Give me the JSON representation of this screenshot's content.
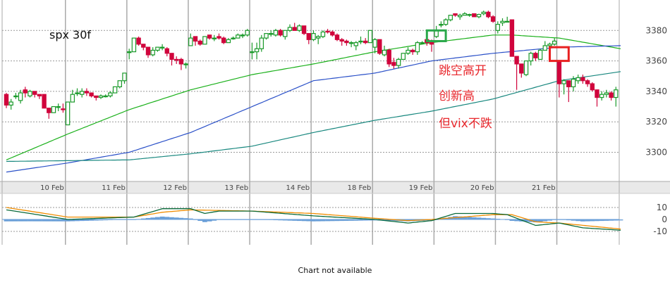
{
  "chart_data": {
    "type": "candlestick",
    "title": "spx  30f",
    "colors": {
      "up": "#1a9a2a",
      "down": "#d0043c",
      "ma_short": "#19b019",
      "ma_mid": "#2a50c8",
      "ma_long": "#17877e",
      "macd_dif": "#0a6a3a",
      "macd_dea": "#f08c00",
      "macd_hist": "#6a9fd8",
      "grid": "#aaaaaa"
    },
    "y_ticks": [
      3380,
      3360,
      3340,
      3320,
      3300
    ],
    "ylim": [
      3282,
      3400
    ],
    "x_ticks": [
      {
        "bar": 12,
        "label": "10 Feb"
      },
      {
        "bar": 25,
        "label": "11 Feb"
      },
      {
        "bar": 38,
        "label": "12 Feb"
      },
      {
        "bar": 51,
        "label": "13 Feb"
      },
      {
        "bar": 64,
        "label": "14 Feb"
      },
      {
        "bar": 77,
        "label": "18 Feb"
      },
      {
        "bar": 90,
        "label": "19 Feb"
      },
      {
        "bar": 103,
        "label": "20 Feb"
      },
      {
        "bar": 116,
        "label": "21 Feb"
      }
    ],
    "ohlc": [
      [
        3338,
        3339,
        3329,
        3331
      ],
      [
        3331,
        3335,
        3328,
        3333
      ],
      [
        3337,
        3339,
        3335,
        3337
      ],
      [
        3334,
        3341,
        3332,
        3339
      ],
      [
        3341,
        3343,
        3336,
        3339
      ],
      [
        3337,
        3341,
        3336,
        3340
      ],
      [
        3340,
        3340,
        3336,
        3338
      ],
      [
        3338,
        3338,
        3335,
        3337
      ],
      [
        3338,
        3338,
        3329,
        3329
      ],
      [
        3329,
        3329,
        3322,
        3326
      ],
      [
        3326,
        3330,
        3326,
        3330
      ],
      [
        3330,
        3332,
        3327,
        3330
      ],
      [
        3328.5,
        3332,
        3326,
        3328
      ],
      [
        3318,
        3333,
        3318,
        3333
      ],
      [
        3333,
        3341,
        3333,
        3338
      ],
      [
        3339,
        3342,
        3337,
        3339
      ],
      [
        3338,
        3342,
        3336,
        3340
      ],
      [
        3340,
        3342,
        3337,
        3339
      ],
      [
        3339,
        3339,
        3336,
        3337
      ],
      [
        3337,
        3337,
        3334,
        3336
      ],
      [
        3336,
        3338,
        3335,
        3337
      ],
      [
        3337,
        3338,
        3336,
        3337
      ],
      [
        3337,
        3340,
        3336,
        3339
      ],
      [
        3339,
        3343,
        3339,
        3343
      ],
      [
        3343,
        3347,
        3342,
        3347
      ],
      [
        3347,
        3352,
        3345,
        3352
      ],
      [
        3366,
        3368,
        3361,
        3366
      ],
      [
        3366,
        3375,
        3366,
        3375
      ],
      [
        3375,
        3376,
        3370,
        3371
      ],
      [
        3371,
        3371,
        3367,
        3369
      ],
      [
        3369,
        3369,
        3362,
        3364
      ],
      [
        3364,
        3369,
        3363,
        3367
      ],
      [
        3367,
        3369,
        3366,
        3369
      ],
      [
        3369,
        3371,
        3367,
        3369
      ],
      [
        3368,
        3369,
        3363,
        3365
      ],
      [
        3365,
        3365,
        3357,
        3361
      ],
      [
        3361,
        3363,
        3358,
        3360.5
      ],
      [
        3361,
        3362,
        3354,
        3358
      ],
      [
        3358,
        3359,
        3355,
        3358
      ],
      [
        3370,
        3378,
        3370,
        3375
      ],
      [
        3376,
        3376,
        3370,
        3373
      ],
      [
        3373,
        3374,
        3370,
        3371
      ],
      [
        3371,
        3376,
        3371,
        3376
      ],
      [
        3377,
        3377,
        3374,
        3375
      ],
      [
        3375,
        3377,
        3373,
        3375
      ],
      [
        3376,
        3378,
        3374,
        3375
      ],
      [
        3375,
        3376,
        3371,
        3372
      ],
      [
        3372,
        3375,
        3372,
        3374
      ],
      [
        3375,
        3376,
        3374,
        3375
      ],
      [
        3375,
        3378,
        3375,
        3377
      ],
      [
        3377,
        3378,
        3375,
        3377
      ],
      [
        3377,
        3381,
        3376,
        3380
      ],
      [
        3366,
        3372,
        3361,
        3366
      ],
      [
        3366,
        3372,
        3361,
        3368
      ],
      [
        3368,
        3377,
        3366,
        3375
      ],
      [
        3375,
        3378,
        3374,
        3378
      ],
      [
        3378,
        3380,
        3376,
        3378
      ],
      [
        3377,
        3381,
        3376,
        3380
      ],
      [
        3380,
        3381,
        3376,
        3377
      ],
      [
        3376,
        3380,
        3374,
        3380
      ],
      [
        3380,
        3384,
        3379,
        3382
      ],
      [
        3382,
        3385,
        3380,
        3380
      ],
      [
        3380,
        3384,
        3379,
        3383
      ],
      [
        3383,
        3383,
        3377,
        3378
      ],
      [
        3378,
        3378,
        3371,
        3374
      ],
      [
        3374,
        3380,
        3373,
        3378
      ],
      [
        3375,
        3377,
        3371,
        3376
      ],
      [
        3376,
        3380,
        3375,
        3379
      ],
      [
        3379.5,
        3381,
        3378,
        3379
      ],
      [
        3379,
        3380,
        3376,
        3377
      ],
      [
        3377,
        3378,
        3373,
        3374
      ],
      [
        3374,
        3375,
        3370,
        3373
      ],
      [
        3373,
        3374,
        3370,
        3372
      ],
      [
        3372,
        3373,
        3369,
        3372
      ],
      [
        3370,
        3373,
        3367,
        3372
      ],
      [
        3373,
        3376,
        3371,
        3373
      ],
      [
        3373,
        3375,
        3371,
        3372
      ],
      [
        3372,
        3380,
        3372,
        3380
      ],
      [
        3369,
        3375,
        3365,
        3374
      ],
      [
        3374,
        3374,
        3364,
        3365
      ],
      [
        3364,
        3370,
        3363,
        3367
      ],
      [
        3367,
        3368,
        3356,
        3358
      ],
      [
        3359,
        3362,
        3355,
        3357
      ],
      [
        3357,
        3362,
        3355,
        3361
      ],
      [
        3361,
        3365,
        3361,
        3365
      ],
      [
        3365,
        3369,
        3364,
        3367
      ],
      [
        3367,
        3368,
        3364,
        3366
      ],
      [
        3366,
        3373,
        3364,
        3372
      ],
      [
        3372,
        3373,
        3371,
        3372
      ],
      [
        3374,
        3376,
        3370,
        3372
      ],
      [
        3372,
        3374,
        3366,
        3371
      ],
      [
        3376,
        3383,
        3375,
        3380
      ],
      [
        3384,
        3386,
        3382,
        3384
      ],
      [
        3384,
        3388,
        3383,
        3387
      ],
      [
        3387,
        3390,
        3386,
        3390
      ],
      [
        3391,
        3391,
        3389,
        3390
      ],
      [
        3389,
        3391,
        3387,
        3390
      ],
      [
        3390,
        3392,
        3390,
        3391
      ],
      [
        3390.5,
        3391,
        3389,
        3390.5
      ],
      [
        3391,
        3391,
        3389,
        3389
      ],
      [
        3389,
        3391,
        3388,
        3390.5
      ],
      [
        3391,
        3393,
        3390,
        3392
      ],
      [
        3392,
        3393,
        3388,
        3389
      ],
      [
        3389,
        3390,
        3385,
        3386
      ],
      [
        3380,
        3386,
        3378,
        3384
      ],
      [
        3385,
        3388,
        3383,
        3386
      ],
      [
        3386,
        3389,
        3386,
        3386
      ],
      [
        3387,
        3387,
        3363,
        3363
      ],
      [
        3363,
        3363,
        3341,
        3358
      ],
      [
        3358,
        3358,
        3349,
        3352
      ],
      [
        3351,
        3360,
        3350,
        3360
      ],
      [
        3360,
        3366,
        3357,
        3365
      ],
      [
        3365,
        3366,
        3360,
        3362
      ],
      [
        3361,
        3368,
        3361,
        3367
      ],
      [
        3367,
        3373,
        3367,
        3370
      ],
      [
        3370,
        3372,
        3365,
        3371
      ],
      [
        3371,
        3375,
        3370,
        3373
      ],
      [
        3360,
        3360,
        3336,
        3345
      ],
      [
        3345,
        3348,
        3338,
        3347
      ],
      [
        3347,
        3347,
        3333,
        3343
      ],
      [
        3343,
        3350,
        3340,
        3348
      ],
      [
        3347,
        3351,
        3345,
        3349
      ],
      [
        3349,
        3351,
        3345,
        3347
      ],
      [
        3347,
        3348,
        3343,
        3345
      ],
      [
        3345,
        3346,
        3340,
        3341
      ],
      [
        3341,
        3341,
        3330,
        3336
      ],
      [
        3336,
        3340,
        3334,
        3338
      ],
      [
        3338,
        3341,
        3336,
        3339
      ],
      [
        3339,
        3340,
        3334,
        3336
      ],
      [
        3336,
        3343,
        3330,
        3341
      ]
    ],
    "moving_averages": [
      {
        "key": "ma_short",
        "points": [
          [
            0,
            3295
          ],
          [
            13,
            3312
          ],
          [
            26,
            3328
          ],
          [
            39,
            3341
          ],
          [
            52,
            3351
          ],
          [
            65,
            3358
          ],
          [
            78,
            3366
          ],
          [
            90,
            3372
          ],
          [
            103,
            3377
          ],
          [
            107,
            3377
          ],
          [
            117,
            3375
          ],
          [
            130,
            3368
          ]
        ]
      },
      {
        "key": "ma_mid",
        "points": [
          [
            0,
            3287
          ],
          [
            13,
            3293
          ],
          [
            26,
            3300
          ],
          [
            39,
            3313
          ],
          [
            52,
            3330
          ],
          [
            65,
            3347
          ],
          [
            78,
            3352
          ],
          [
            90,
            3360
          ],
          [
            103,
            3365
          ],
          [
            117,
            3369
          ],
          [
            130,
            3370
          ]
        ]
      },
      {
        "key": "ma_long",
        "points": [
          [
            0,
            3294
          ],
          [
            26,
            3295
          ],
          [
            39,
            3299
          ],
          [
            52,
            3304
          ],
          [
            65,
            3313
          ],
          [
            78,
            3321
          ],
          [
            90,
            3327
          ],
          [
            103,
            3335
          ],
          [
            117,
            3347
          ],
          [
            130,
            3353
          ]
        ]
      }
    ],
    "macd": {
      "y_ticks": [
        10,
        0,
        -10
      ],
      "ylim": [
        -19,
        19
      ],
      "dif": [
        [
          0,
          8
        ],
        [
          5,
          5
        ],
        [
          13,
          0
        ],
        [
          20,
          1
        ],
        [
          27,
          2
        ],
        [
          33,
          9
        ],
        [
          39,
          9
        ],
        [
          42,
          5
        ],
        [
          45,
          7
        ],
        [
          52,
          7
        ],
        [
          65,
          3
        ],
        [
          78,
          0
        ],
        [
          85,
          -3
        ],
        [
          90,
          -1
        ],
        [
          95,
          5
        ],
        [
          103,
          5
        ],
        [
          106,
          4
        ],
        [
          112,
          -5
        ],
        [
          117,
          -3
        ],
        [
          122,
          -7
        ],
        [
          130,
          -9
        ]
      ],
      "dea": [
        [
          0,
          10
        ],
        [
          13,
          2
        ],
        [
          27,
          2
        ],
        [
          33,
          6
        ],
        [
          39,
          8
        ],
        [
          52,
          7
        ],
        [
          65,
          5
        ],
        [
          78,
          1
        ],
        [
          85,
          -1
        ],
        [
          90,
          0
        ],
        [
          103,
          4
        ],
        [
          107,
          4
        ],
        [
          112,
          -2
        ],
        [
          117,
          -3
        ],
        [
          130,
          -8
        ]
      ]
    },
    "annotations": [
      {
        "text": "跳空高开",
        "color": "#e8282d"
      },
      {
        "text": "创新高",
        "color": "#e8282d"
      },
      {
        "text": "但vix不跌",
        "color": "#e8282d"
      }
    ],
    "highlight_boxes": [
      {
        "from_bar": 89,
        "to_bar": 93,
        "top": 3380,
        "bottom": 3373,
        "color": "#2aa84a"
      },
      {
        "from_bar": 115,
        "to_bar": 119,
        "top": 3369,
        "bottom": 3360,
        "color": "#e82020"
      }
    ]
  },
  "footer": {
    "message": "Chart not available"
  }
}
